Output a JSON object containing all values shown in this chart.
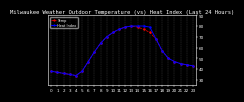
{
  "title": "Milwaukee Weather Outdoor Temperature (vs) Heat Index (Last 24 Hours)",
  "temp_color": "#FF0000",
  "heat_color": "#0000FF",
  "background_color": "#000000",
  "plot_bg_color": "#000000",
  "grid_color": "#555555",
  "ylim": [
    25,
    90
  ],
  "ytick_values": [
    30,
    40,
    50,
    60,
    70,
    80,
    90
  ],
  "ytick_labels": [
    "30",
    "40",
    "50",
    "60",
    "70",
    "80",
    "90"
  ],
  "hours": [
    0,
    1,
    2,
    3,
    4,
    5,
    6,
    7,
    8,
    9,
    10,
    11,
    12,
    13,
    14,
    15,
    16,
    17,
    18,
    19,
    20,
    21,
    22,
    23
  ],
  "temp": [
    38,
    37,
    36,
    35,
    34,
    38,
    47,
    56,
    64,
    70,
    74,
    77,
    79,
    80,
    79,
    77,
    74,
    68,
    57,
    50,
    47,
    45,
    44,
    43
  ],
  "heat_index": [
    38,
    37,
    36,
    35,
    34,
    38,
    47,
    56,
    64,
    70,
    74,
    77,
    79,
    80,
    80,
    80,
    79,
    68,
    57,
    50,
    47,
    45,
    44,
    43
  ],
  "title_fontsize": 4.0,
  "tick_fontsize": 3.0,
  "linewidth_temp": 0.5,
  "linewidth_heat": 0.7,
  "markersize": 1.5
}
